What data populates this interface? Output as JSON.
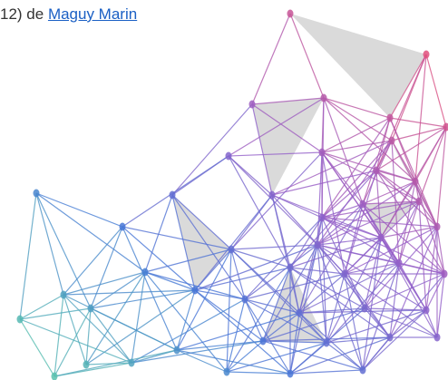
{
  "text": {
    "prefix": "12) de",
    "link": "Maguy Marin"
  }
}
